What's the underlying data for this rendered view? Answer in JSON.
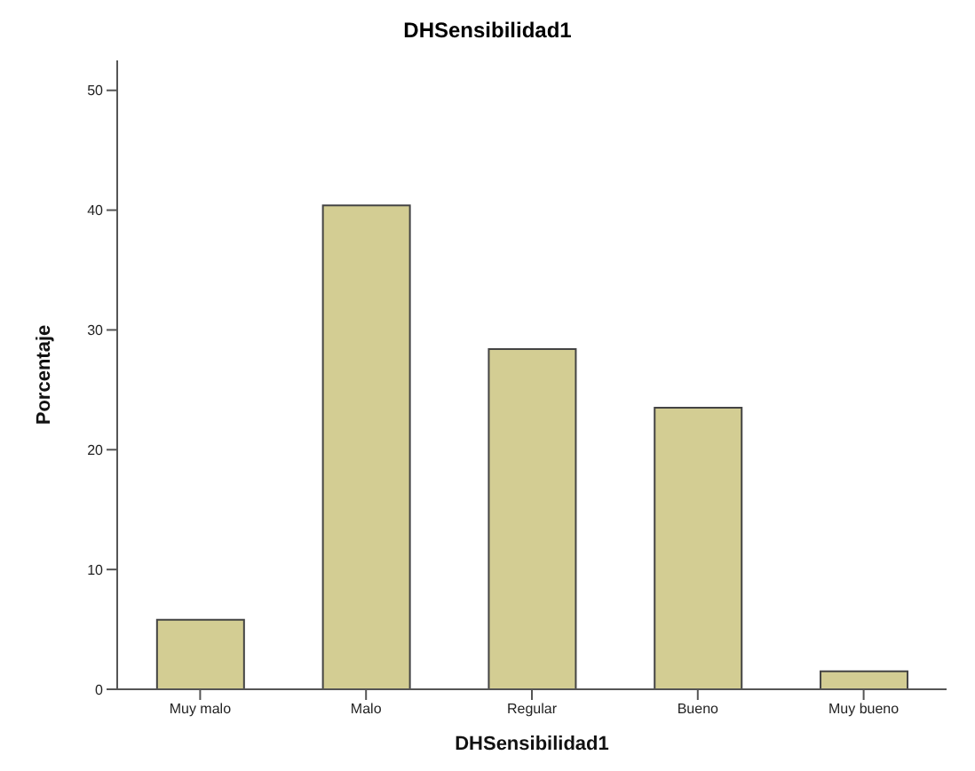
{
  "chart_data": {
    "type": "bar",
    "title": "DHSensibilidad1",
    "xlabel": "DHSensibilidad1",
    "ylabel": "Porcentaje",
    "categories": [
      "Muy malo",
      "Malo",
      "Regular",
      "Bueno",
      "Muy bueno"
    ],
    "values": [
      5.8,
      40.4,
      28.4,
      23.5,
      1.5
    ],
    "color": "#d3cd93",
    "ylim": [
      0,
      52.5
    ],
    "yticks": [
      0,
      10,
      20,
      30,
      40,
      50
    ],
    "grid": false
  }
}
